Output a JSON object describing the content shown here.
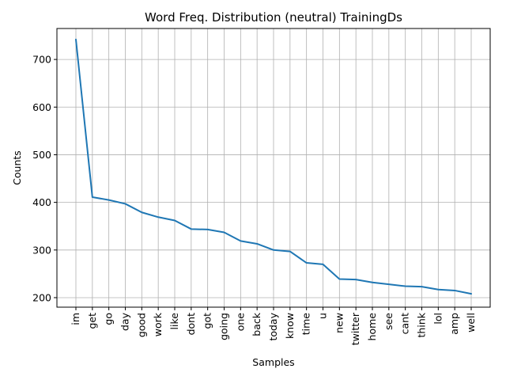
{
  "chart_data": {
    "type": "line",
    "title": "Word Freq. Distribution (neutral) TrainingDs",
    "xlabel": "Samples",
    "ylabel": "Counts",
    "categories": [
      "im",
      "get",
      "go",
      "day",
      "good",
      "work",
      "like",
      "dont",
      "got",
      "going",
      "one",
      "back",
      "today",
      "know",
      "time",
      "u",
      "new",
      "twitter",
      "home",
      "see",
      "cant",
      "think",
      "lol",
      "amp",
      "well"
    ],
    "values": [
      742,
      411,
      405,
      397,
      379,
      369,
      362,
      344,
      343,
      337,
      319,
      313,
      300,
      297,
      273,
      270,
      239,
      238,
      232,
      228,
      224,
      223,
      217,
      215,
      208
    ],
    "yticks": [
      200,
      300,
      400,
      500,
      600,
      700
    ],
    "ylim": [
      180,
      765
    ],
    "grid": true,
    "line_color": "#1f77b4",
    "grid_color": "#b0b0b0"
  }
}
